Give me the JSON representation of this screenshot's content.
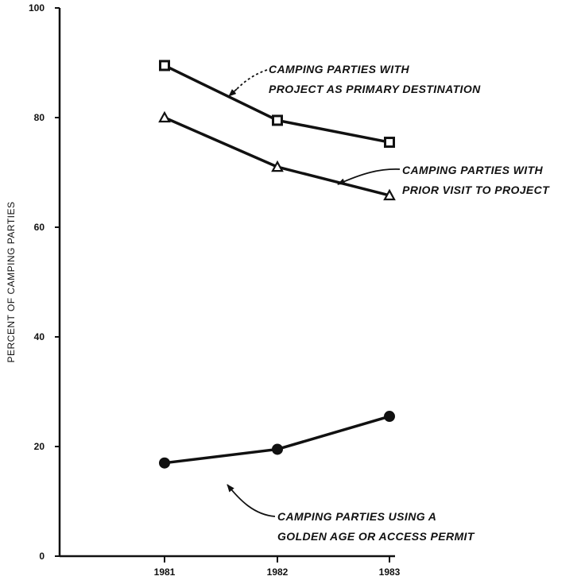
{
  "chart_data": {
    "type": "line",
    "title": "",
    "xlabel": "",
    "ylabel": "PERCENT OF CAMPING PARTIES",
    "ylim": [
      0,
      100
    ],
    "yticks": [
      0,
      20,
      40,
      60,
      80,
      100
    ],
    "xticks": [
      1981,
      1982,
      1983
    ],
    "categories": [
      "1981",
      "1982",
      "1983"
    ],
    "series": [
      {
        "name": "CAMPING PARTIES WITH PROJECT AS PRIMARY DESTINATION",
        "marker": "square",
        "values": [
          89.5,
          79.5,
          75.5
        ]
      },
      {
        "name": "CAMPING PARTIES WITH PRIOR VISIT TO PROJECT",
        "marker": "triangle",
        "values": [
          80,
          71,
          65.8
        ]
      },
      {
        "name": "CAMPING PARTIES USING A GOLDEN AGE OR ACCESS PERMIT",
        "marker": "circle",
        "values": [
          17,
          19.5,
          25.5
        ]
      }
    ],
    "annotations": [
      {
        "lines": [
          "CAMPING PARTIES WITH",
          "PROJECT AS PRIMARY DESTINATION"
        ]
      },
      {
        "lines": [
          "CAMPING PARTIES WITH",
          "PRIOR VISIT TO PROJECT"
        ]
      },
      {
        "lines": [
          "CAMPING PARTIES USING A",
          "GOLDEN AGE OR ACCESS PERMIT"
        ]
      }
    ],
    "grid": false,
    "legend": "none"
  }
}
